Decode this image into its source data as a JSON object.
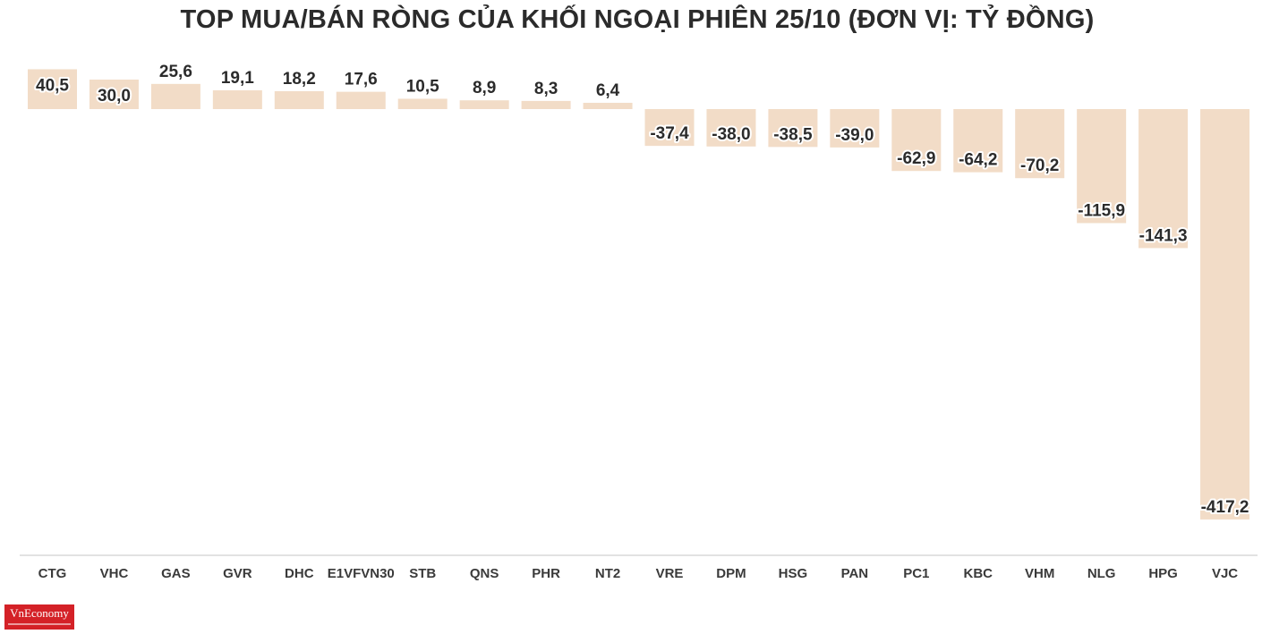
{
  "chart_data": {
    "type": "bar",
    "title": "TOP MUA/BÁN RÒNG CỦA KHỐI NGOẠI PHIÊN 25/10 (ĐƠN VỊ: TỶ ĐỒNG)",
    "categories": [
      "CTG",
      "VHC",
      "GAS",
      "GVR",
      "DHC",
      "E1VFVN30",
      "STB",
      "QNS",
      "PHR",
      "NT2",
      "VRE",
      "DPM",
      "HSG",
      "PAN",
      "PC1",
      "KBC",
      "VHM",
      "NLG",
      "HPG",
      "VJC"
    ],
    "values": [
      40.5,
      30.0,
      25.6,
      19.1,
      18.2,
      17.6,
      10.5,
      8.9,
      8.3,
      6.4,
      -37.4,
      -38.0,
      -38.5,
      -39.0,
      -62.9,
      -64.2,
      -70.2,
      -115.9,
      -141.3,
      -417.2
    ],
    "value_labels": [
      "40,5",
      "30,0",
      "25,6",
      "19,1",
      "18,2",
      "17,6",
      "10,5",
      "8,9",
      "8,3",
      "6,4",
      "-37,4",
      "-38,0",
      "-38,5",
      "-39,0",
      "-62,9",
      "-64,2",
      "-70,2",
      "-115,9",
      "-141,3",
      "-417,2"
    ],
    "xlabel": "",
    "ylabel": "",
    "ylim": [
      -417.2,
      40.5
    ],
    "grid": false,
    "bar_color": "#f2dcc7",
    "label_halo_color": "#ffffff",
    "text_color": "#2b2b2b",
    "axis_color": "#d9d9d9"
  },
  "logo": {
    "text": "VnEconomy",
    "color": "#d42127"
  }
}
